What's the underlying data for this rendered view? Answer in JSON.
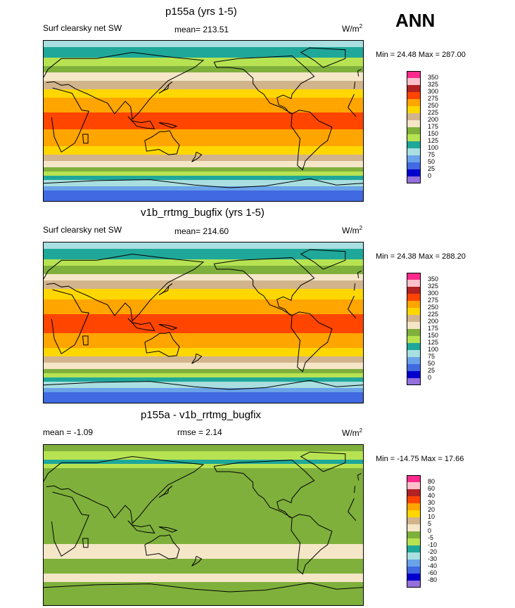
{
  "season": "ANN",
  "chart_data": [
    {
      "type": "heatmap",
      "title": "p155a (yrs 1-5)",
      "left_label": "Surf clearsky net SW",
      "mid_label": "mean= 213.51",
      "units": "W/m",
      "units_sup": "2",
      "minmax": "Min =  24.48 Max = 287.00",
      "levels": [
        "350",
        "325",
        "300",
        "275",
        "250",
        "225",
        "200",
        "175",
        "150",
        "125",
        "100",
        "75",
        "50",
        "25",
        "0"
      ],
      "colors": [
        "#ff2a8c",
        "#ffc0cb",
        "#b22222",
        "#ff4500",
        "#ffa500",
        "#ffd700",
        "#d2b48c",
        "#f5e6c8",
        "#7fb03c",
        "#b7e352",
        "#1fa89a",
        "#a9dfe0",
        "#6aa3e8",
        "#4169e1",
        "#0000cd",
        "#9370db"
      ],
      "zonal_bands": [
        {
          "lat": 90,
          "value": 90
        },
        {
          "lat": 75,
          "value": 110
        },
        {
          "lat": 65,
          "value": 140
        },
        {
          "lat": 55,
          "value": 170
        },
        {
          "lat": 45,
          "value": 200
        },
        {
          "lat": 35,
          "value": 230
        },
        {
          "lat": 20,
          "value": 260
        },
        {
          "lat": 5,
          "value": 280
        },
        {
          "lat": -10,
          "value": 275
        },
        {
          "lat": -25,
          "value": 255
        },
        {
          "lat": -35,
          "value": 235
        },
        {
          "lat": -45,
          "value": 200
        },
        {
          "lat": -55,
          "value": 160
        },
        {
          "lat": -65,
          "value": 110
        },
        {
          "lat": -78,
          "value": 50
        },
        {
          "lat": -90,
          "value": 30
        }
      ]
    },
    {
      "type": "heatmap",
      "title": "v1b_rrtmg_bugfix (yrs 1-5)",
      "left_label": "Surf clearsky net SW",
      "mid_label": "mean= 214.60",
      "units": "W/m",
      "units_sup": "2",
      "minmax": "Min =  24.38 Max = 288.20",
      "levels": [
        "350",
        "325",
        "300",
        "275",
        "250",
        "225",
        "200",
        "175",
        "150",
        "125",
        "100",
        "75",
        "50",
        "25",
        "0"
      ],
      "colors": [
        "#ff2a8c",
        "#ffc0cb",
        "#b22222",
        "#ff4500",
        "#ffa500",
        "#ffd700",
        "#d2b48c",
        "#f5e6c8",
        "#7fb03c",
        "#b7e352",
        "#1fa89a",
        "#a9dfe0",
        "#6aa3e8",
        "#4169e1",
        "#0000cd",
        "#9370db"
      ],
      "zonal_bands": [
        {
          "lat": 90,
          "value": 90
        },
        {
          "lat": 75,
          "value": 115
        },
        {
          "lat": 65,
          "value": 145
        },
        {
          "lat": 55,
          "value": 172
        },
        {
          "lat": 45,
          "value": 205
        },
        {
          "lat": 35,
          "value": 235
        },
        {
          "lat": 20,
          "value": 262
        },
        {
          "lat": 5,
          "value": 282
        },
        {
          "lat": -10,
          "value": 278
        },
        {
          "lat": -25,
          "value": 258
        },
        {
          "lat": -35,
          "value": 238
        },
        {
          "lat": -45,
          "value": 205
        },
        {
          "lat": -55,
          "value": 162
        },
        {
          "lat": -65,
          "value": 112
        },
        {
          "lat": -78,
          "value": 48
        },
        {
          "lat": -90,
          "value": 30
        }
      ]
    },
    {
      "type": "heatmap",
      "title": "p155a - v1b_rrtmg_bugfix",
      "left_label": "mean =  -1.09",
      "mid_label": "rmse =   2.14",
      "units": "W/m",
      "units_sup": "2",
      "minmax": "Min = -14.75 Max =  17.66",
      "levels": [
        "80",
        "60",
        "40",
        "30",
        "20",
        "10",
        "5",
        "0",
        "-5",
        "-10",
        "-20",
        "-30",
        "-40",
        "-60",
        "-80"
      ],
      "colors": [
        "#ff2a8c",
        "#ffc0cb",
        "#b22222",
        "#ff4500",
        "#ffa500",
        "#ffd700",
        "#d2b48c",
        "#f5e6c8",
        "#7fb03c",
        "#b7e352",
        "#1fa89a",
        "#a9dfe0",
        "#6aa3e8",
        "#4169e1",
        "#0000cd",
        "#9370db"
      ],
      "zonal_bands": [
        {
          "lat": 90,
          "value": -2
        },
        {
          "lat": 70,
          "value": -12
        },
        {
          "lat": 60,
          "value": -2
        },
        {
          "lat": 30,
          "value": -3
        },
        {
          "lat": 10,
          "value": -1
        },
        {
          "lat": -15,
          "value": -2
        },
        {
          "lat": -30,
          "value": 2
        },
        {
          "lat": -45,
          "value": -2
        },
        {
          "lat": -60,
          "value": 1
        },
        {
          "lat": -75,
          "value": -3
        },
        {
          "lat": -90,
          "value": -2
        }
      ]
    }
  ]
}
